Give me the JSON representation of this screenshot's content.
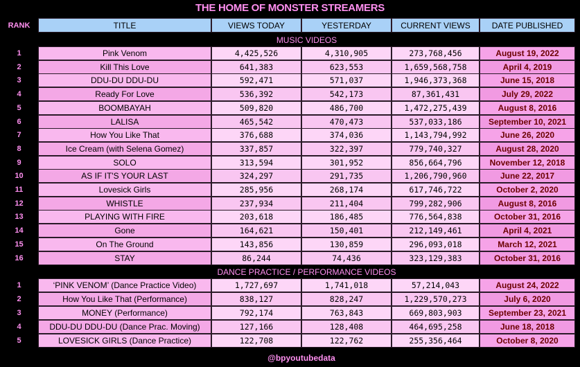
{
  "header": {
    "title": "THE HOME OF MONSTER STREAMERS"
  },
  "table": {
    "columns": [
      "RANK",
      "TITLE",
      "VIEWS TODAY",
      "YESTERDAY",
      "CURRENT VIEWS",
      "DATE PUBLISHED"
    ],
    "sections": [
      {
        "title": "MUSIC VIDEOS",
        "rows": [
          [
            "1",
            "Pink Venom",
            "4,425,526",
            "4,310,905",
            "273,768,456",
            "August 19, 2022"
          ],
          [
            "2",
            "Kill This Love",
            "641,383",
            "623,553",
            "1,659,568,758",
            "April 4, 2019"
          ],
          [
            "3",
            "DDU-DU DDU-DU",
            "592,471",
            "571,037",
            "1,946,373,368",
            "June 15, 2018"
          ],
          [
            "4",
            "Ready For Love",
            "536,392",
            "542,173",
            "87,361,431",
            "July 29, 2022"
          ],
          [
            "5",
            "BOOMBAYAH",
            "509,820",
            "486,700",
            "1,472,275,439",
            "August 8, 2016"
          ],
          [
            "6",
            "LALISA",
            "465,542",
            "470,473",
            "537,033,186",
            "September 10, 2021"
          ],
          [
            "7",
            "How You Like That",
            "376,688",
            "374,036",
            "1,143,794,992",
            "June 26, 2020"
          ],
          [
            "8",
            "Ice Cream (with Selena Gomez)",
            "337,857",
            "322,397",
            "779,740,327",
            "August 28, 2020"
          ],
          [
            "9",
            "SOLO",
            "313,594",
            "301,952",
            "856,664,796",
            "November 12, 2018"
          ],
          [
            "10",
            "AS IF IT'S YOUR LAST",
            "324,297",
            "291,735",
            "1,206,790,960",
            "June 22, 2017"
          ],
          [
            "11",
            "Lovesick Girls",
            "285,956",
            "268,174",
            "617,746,722",
            "October 2, 2020"
          ],
          [
            "12",
            "WHISTLE",
            "237,934",
            "211,404",
            "799,282,906",
            "August 8, 2016"
          ],
          [
            "13",
            "PLAYING WITH FIRE",
            "203,618",
            "186,485",
            "776,564,838",
            "October 31, 2016"
          ],
          [
            "14",
            "Gone",
            "164,621",
            "150,401",
            "212,149,461",
            "April 4, 2021"
          ],
          [
            "15",
            "On The Ground",
            "143,856",
            "130,859",
            "296,093,018",
            "March 12, 2021"
          ],
          [
            "16",
            "STAY",
            "86,244",
            "74,436",
            "323,129,383",
            "October 31, 2016"
          ]
        ]
      },
      {
        "title": "DANCE PRACTICE / PERFORMANCE VIDEOS",
        "rows": [
          [
            "1",
            "‘PINK VENOM’ (Dance Practice Video)",
            "1,727,697",
            "1,741,018",
            "57,214,043",
            "August 24, 2022"
          ],
          [
            "2",
            "How You Like That (Performance)",
            "838,127",
            "828,247",
            "1,229,570,273",
            "July 6, 2020"
          ],
          [
            "3",
            "MONEY (Performance)",
            "792,174",
            "763,843",
            "669,803,903",
            "September 23, 2021"
          ],
          [
            "4",
            "DDU-DU DDU-DU (Dance Prac. Moving)",
            "127,166",
            "128,408",
            "464,695,258",
            "June 18, 2018"
          ],
          [
            "5",
            "LOVESICK GIRLS (Dance Practice)",
            "122,708",
            "122,762",
            "255,356,464",
            "October 8, 2020"
          ]
        ]
      }
    ]
  },
  "footer": {
    "handle": "@bpyoutubedata"
  }
}
